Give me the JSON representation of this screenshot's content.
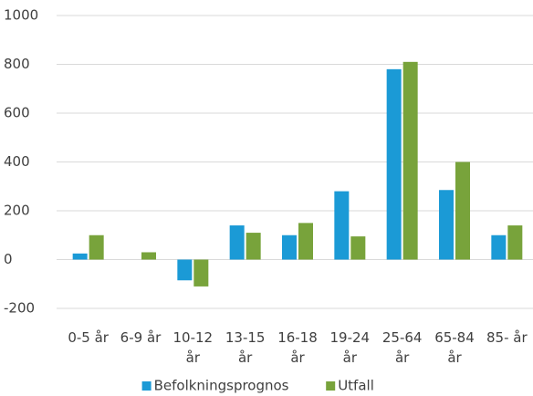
{
  "chart_data": {
    "type": "bar",
    "categories": [
      "0-5 år",
      "6-9 år",
      "10-12 år",
      "13-15 år",
      "16-18 år",
      "19-24 år",
      "25-64 år",
      "65-84 år",
      "85- år"
    ],
    "series": [
      {
        "name": "Befolkningsprognos",
        "color": "#1b9ad6",
        "values": [
          25,
          0,
          -85,
          140,
          100,
          280,
          780,
          285,
          100
        ]
      },
      {
        "name": "Utfall",
        "color": "#78a33b",
        "values": [
          100,
          30,
          -110,
          110,
          150,
          95,
          810,
          400,
          140
        ]
      }
    ],
    "ylim": [
      -200,
      1000
    ],
    "yticks": [
      -200,
      0,
      200,
      400,
      600,
      800,
      1000
    ],
    "grid": true,
    "legend": "bottom"
  }
}
